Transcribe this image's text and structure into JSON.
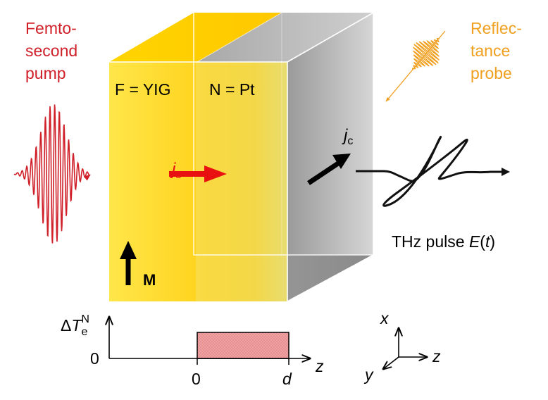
{
  "labels": {
    "pump": [
      "Femto-",
      "second",
      "pump"
    ],
    "probe": [
      "Reflec-",
      "tance",
      "probe"
    ],
    "layer_f": "F = YIG",
    "layer_n": "N = Pt",
    "js_symbol": "j",
    "js_subscript": "s",
    "jc_symbol": "j",
    "jc_subscript": "c",
    "magnetization": "M",
    "thz_text": "THz pulse ",
    "thz_func": "E",
    "thz_paren_open": "(",
    "thz_var": "t",
    "thz_paren_close": ")"
  },
  "temperature_plot": {
    "ylabel_delta": "Δ",
    "ylabel_symbol": "T",
    "ylabel_subscript": "e",
    "ylabel_superscript": "N",
    "y_tick": "0",
    "x_tick_start": "0",
    "x_tick_end": "d",
    "x_axis_label": "z"
  },
  "axes_labels": {
    "x": "x",
    "y": "y",
    "z": "z"
  },
  "colors": {
    "pump": "#d0202a",
    "probe": "#f0a020",
    "yig": "#ffd520",
    "pt": "#f6e060",
    "metal": "#b3b3b3",
    "js_arrow": "#e81010",
    "hot_region": "#f0a0a0"
  }
}
